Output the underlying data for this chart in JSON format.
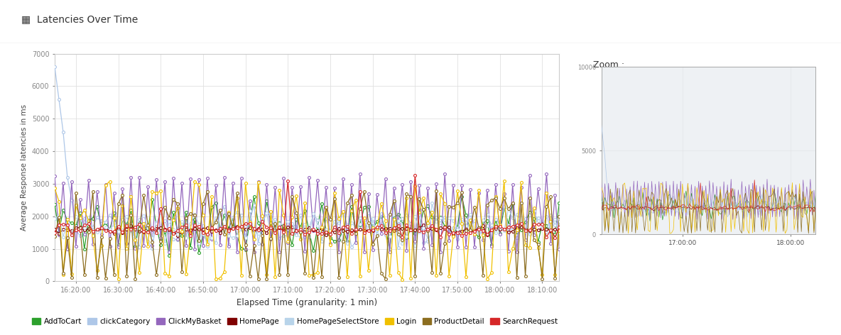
{
  "title": "Latencies Over Time",
  "xlabel": "Elapsed Time (granularity: 1 min)",
  "ylabel": "Average Response latencies in ms",
  "ylim": [
    0,
    7000
  ],
  "zoom_ylim": [
    0,
    10000
  ],
  "background_color": "#ffffff",
  "header_bg": "#eeeeee",
  "grid_color": "#e0e0e0",
  "series": [
    {
      "name": "AddToCart",
      "color": "#2ca02c"
    },
    {
      "name": "clickCategory",
      "color": "#aec7e8"
    },
    {
      "name": "ClickMyBasket",
      "color": "#9467bd"
    },
    {
      "name": "HomePage",
      "color": "#7f0000"
    },
    {
      "name": "HomePageSelectStore",
      "color": "#b8d4ea"
    },
    {
      "name": "Login",
      "color": "#f0c000"
    },
    {
      "name": "ProductDetail",
      "color": "#8c6d1f"
    },
    {
      "name": "SearchRequest",
      "color": "#d62728"
    }
  ],
  "legend_colors": [
    "#2ca02c",
    "#aec7e8",
    "#9467bd",
    "#7f0000",
    "#b8d4ea",
    "#f0c000",
    "#8c6d1f",
    "#d62728"
  ],
  "legend_names": [
    "AddToCart",
    "clickCategory",
    "ClickMyBasket",
    "HomePage",
    "HomePageSelectStore",
    "Login",
    "ProductDetail",
    "SearchRequest"
  ],
  "xtick_labels": [
    "16:20:00",
    "16:30:00",
    "16:40:00",
    "16:50:00",
    "17:00:00",
    "17:10:00",
    "17:20:00",
    "17:30:00",
    "17:40:00",
    "17:50:00",
    "18:00:00",
    "18:10:00"
  ],
  "zoom_xtick_labels": [
    "17:00:00",
    "18:00:00"
  ],
  "num_points": 120,
  "seed": 7
}
